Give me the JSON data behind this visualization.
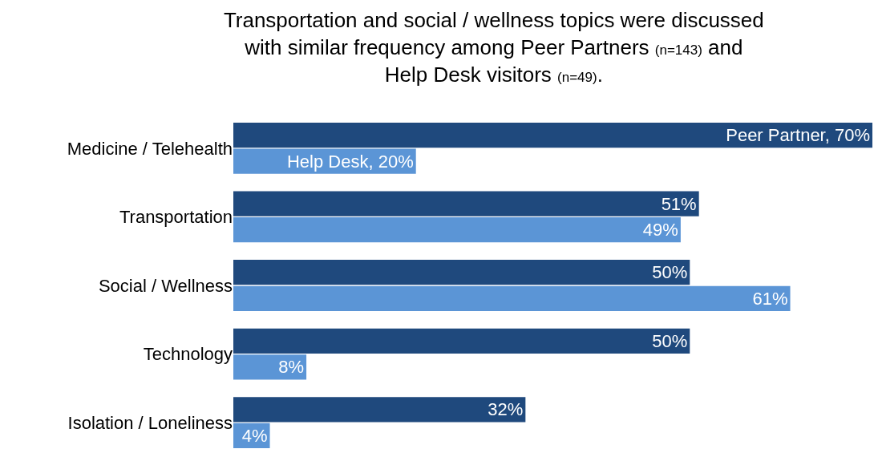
{
  "chart_data": {
    "type": "bar",
    "orientation": "horizontal",
    "title": "Transportation and social / wellness topics were discussed with similar frequency among Peer Partners (n=143) and Help Desk visitors (n=49).",
    "categories": [
      "Medicine / Telehealth",
      "Transportation",
      "Social / Wellness",
      "Technology",
      "Isolation / Loneliness"
    ],
    "series": [
      {
        "color": "#1f497d",
        "values": [
          70,
          51,
          50,
          50,
          32
        ],
        "value_labels": [
          "Peer Partner, 70%",
          "51%",
          "50%",
          "50%",
          "32%"
        ]
      },
      {
        "color": "#5b95d6",
        "values": [
          20,
          49,
          61,
          8,
          4
        ],
        "value_labels": [
          "Help Desk, 20%",
          "49%",
          "61%",
          "8%",
          "4%"
        ]
      }
    ],
    "xlim": [
      0,
      70
    ],
    "tick_labels": "y"
  }
}
